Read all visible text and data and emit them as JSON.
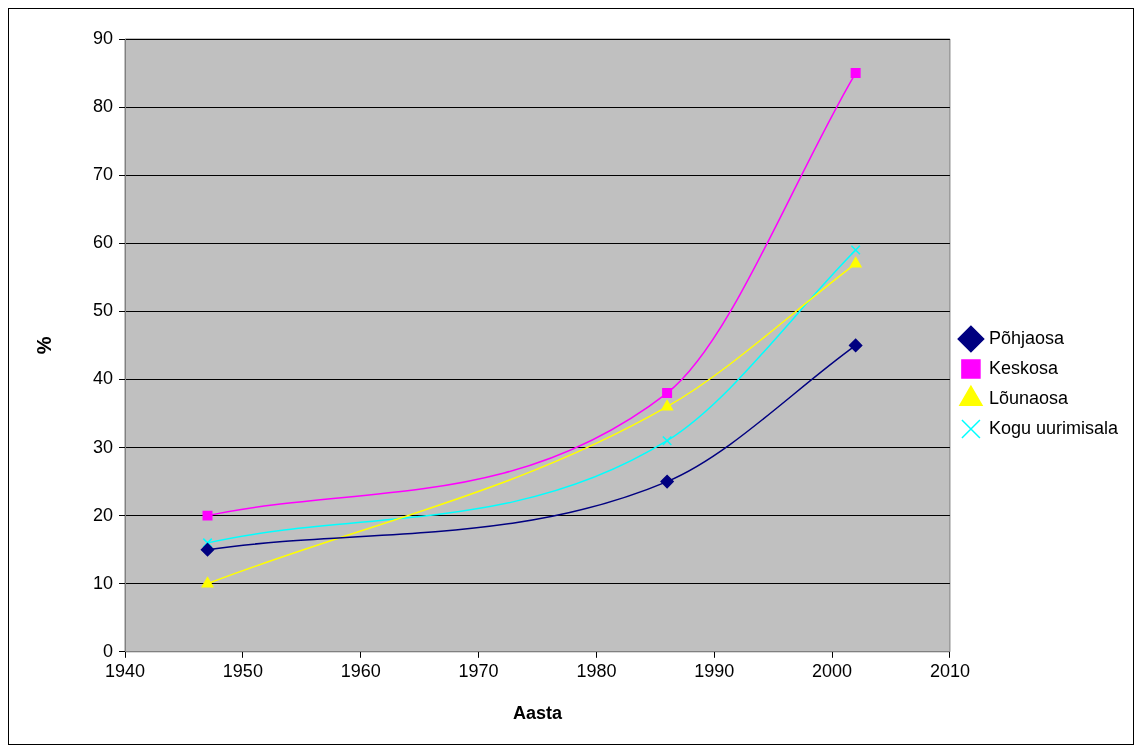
{
  "chart_data": {
    "type": "line",
    "xlabel": "Aasta",
    "ylabel": "%",
    "x": [
      1947,
      1986,
      2002
    ],
    "series": [
      {
        "name": "Põhjaosa",
        "color": "#000080",
        "marker": "diamond",
        "values": [
          15,
          25,
          45
        ]
      },
      {
        "name": "Keskosa",
        "color": "#ff00ff",
        "marker": "square",
        "values": [
          20,
          38,
          85
        ]
      },
      {
        "name": "Lõunaosa",
        "color": "#ffff00",
        "marker": "triangle",
        "values": [
          10,
          36,
          57
        ]
      },
      {
        "name": "Kogu uurimisala",
        "color": "#00ffff",
        "marker": "cross",
        "values": [
          16,
          31,
          59
        ]
      }
    ],
    "xlim": [
      1940,
      2010
    ],
    "xticks": [
      1940,
      1950,
      1960,
      1970,
      1980,
      1990,
      2000,
      2010
    ],
    "ylim": [
      0,
      90
    ],
    "yticks": [
      0,
      10,
      20,
      30,
      40,
      50,
      60,
      70,
      80,
      90
    ],
    "grid": "y",
    "legend": "right",
    "line_style": "solid"
  }
}
